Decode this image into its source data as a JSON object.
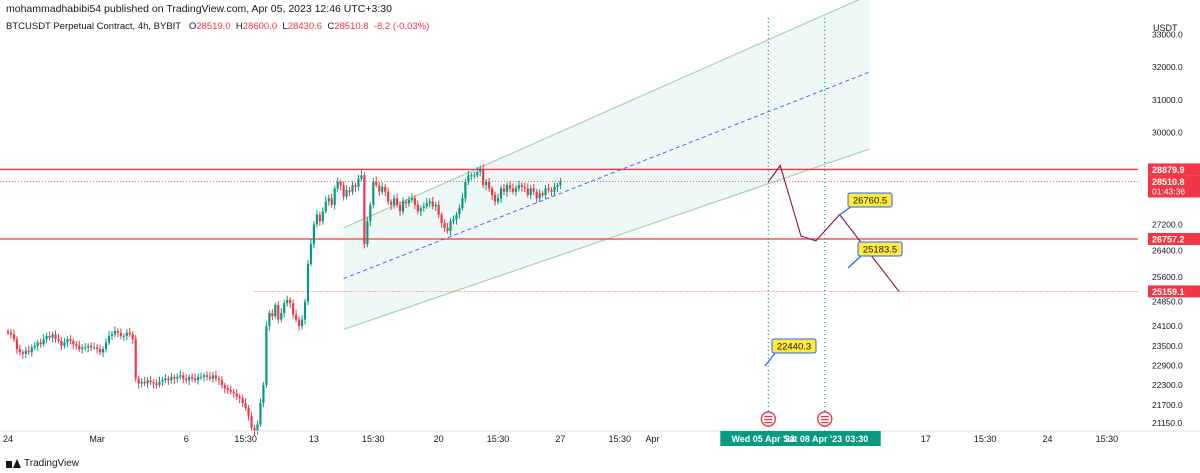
{
  "header": {
    "publisher_text": "mohammadhabibi54 published on TradingView.com, Apr 05, 2023 12:46 UTC+3:30"
  },
  "symbol": {
    "name": "BTCUSDT Perpetual Contract, 4h, BYBIT",
    "open_label": "O",
    "open": "28519.0",
    "high_label": "H",
    "high": "28600.0",
    "low_label": "L",
    "low": "28430.6",
    "close_label": "C",
    "close": "28510.8",
    "change": "-8.2 (-0.03%)"
  },
  "footer": {
    "brand": "TradingView"
  },
  "colors": {
    "up": "#089981",
    "down": "#f23645",
    "channel": "#a5d6a7",
    "channel_fill": "#e0f2ef",
    "midline": "#2962ff",
    "label_yellow": "#ffeb3b",
    "label_border": "#2962ff",
    "projection": "#880e4f",
    "vline": "#089981"
  },
  "chart_data": {
    "type": "candlestick",
    "instrument": "BTCUSDT Perpetual Contract",
    "timeframe": "4h",
    "exchange": "BYBIT",
    "ylabel": "USDT",
    "ylim": [
      20900,
      33500
    ],
    "x_tick_labels": [
      "24",
      "Mar",
      "6",
      "15:30",
      "13",
      "15:30",
      "20",
      "15:30",
      "27",
      "15:30",
      "Apr",
      "15:30",
      "17",
      "15:30",
      "24",
      "15:30"
    ],
    "x_tick_index": [
      0,
      30,
      60,
      80,
      103,
      123,
      145,
      165,
      186,
      206,
      217,
      290,
      309,
      329,
      350,
      370
    ],
    "y_tick_labels": [
      "33000.0",
      "32000.0",
      "31000.0",
      "30000.0",
      "27200.0",
      "26400.0",
      "25600.0",
      "24850.0",
      "24100.0",
      "23500.0",
      "22900.0",
      "22300.0",
      "21700.0",
      "21150.0"
    ],
    "y_tick_values": [
      33000,
      32000,
      31000,
      30000,
      27200,
      26400,
      25600,
      24850,
      24100,
      23500,
      22900,
      22300,
      21700,
      21150
    ],
    "candles_4h": {
      "start_label": "24",
      "opens": [
        23950,
        23900,
        23850,
        23700,
        23400,
        23300,
        23250,
        23350,
        23300,
        23450,
        23500,
        23600,
        23550,
        23700,
        23800,
        23750,
        23850,
        23700,
        23650,
        23500,
        23600,
        23700,
        23650,
        23550,
        23500,
        23400,
        23450,
        23450,
        23500,
        23450,
        23450,
        23400,
        23300,
        23400,
        23600,
        23800,
        23850,
        23950,
        23900,
        23800,
        23800,
        23900,
        23850,
        23700,
        22500,
        22350,
        22400,
        22350,
        22450,
        22400,
        22350,
        22300,
        22400,
        22450,
        22500,
        22450,
        22550,
        22500,
        22550,
        22600,
        22500,
        22450,
        22550,
        22500,
        22450,
        22550,
        22550,
        22600,
        22550,
        22500,
        22600,
        22500,
        22450,
        22300,
        22200,
        22150,
        22100,
        22050,
        21950,
        21900,
        21750,
        21600,
        21350,
        21000,
        20900,
        21100,
        21750,
        22300,
        24100,
        24500,
        24400,
        24750,
        24300,
        24500,
        24800,
        24900,
        24800,
        24450,
        24300,
        24100,
        24300,
        24850,
        26000,
        26600,
        27200,
        27500,
        27300,
        27600,
        27900,
        28000,
        27800,
        28300,
        28500,
        28400,
        28050,
        28250,
        28200,
        28400,
        28350,
        28600,
        28700,
        26600,
        27300,
        27800,
        28500,
        28400,
        28200,
        28350,
        28200,
        27900,
        27800,
        28000,
        27800,
        27600,
        27900,
        27850,
        27950,
        28000,
        27800,
        27600,
        27700,
        27750,
        27850,
        27900,
        27750,
        27800,
        27500,
        27250,
        27100,
        27000,
        27300,
        27350,
        27500,
        27700,
        28000,
        28500,
        28700,
        28700,
        28700,
        28800,
        28900,
        28400,
        28500,
        28300,
        28100,
        27900,
        28000,
        28300,
        28200,
        28400,
        28300,
        28200,
        28300,
        28400,
        28350,
        28300,
        28100,
        28300,
        28200,
        28000,
        28150,
        28100,
        28300,
        28250,
        28200,
        28350,
        28400
      ],
      "closes": [
        23900,
        23850,
        23700,
        23400,
        23300,
        23250,
        23350,
        23300,
        23450,
        23500,
        23600,
        23550,
        23700,
        23800,
        23750,
        23850,
        23700,
        23650,
        23500,
        23600,
        23700,
        23650,
        23550,
        23500,
        23400,
        23450,
        23450,
        23500,
        23450,
        23450,
        23400,
        23300,
        23400,
        23600,
        23800,
        23850,
        23950,
        23900,
        23800,
        23800,
        23900,
        23850,
        23700,
        22500,
        22350,
        22400,
        22350,
        22450,
        22400,
        22350,
        22300,
        22400,
        22450,
        22500,
        22450,
        22550,
        22500,
        22550,
        22600,
        22500,
        22450,
        22550,
        22500,
        22450,
        22550,
        22550,
        22600,
        22550,
        22500,
        22600,
        22500,
        22450,
        22300,
        22200,
        22150,
        22100,
        22050,
        21950,
        21900,
        21750,
        21600,
        21350,
        21000,
        20900,
        21100,
        21750,
        22300,
        24100,
        24500,
        24400,
        24750,
        24300,
        24500,
        24800,
        24900,
        24800,
        24450,
        24300,
        24100,
        24300,
        24850,
        26000,
        26600,
        27200,
        27500,
        27300,
        27600,
        27900,
        28000,
        27800,
        28300,
        28500,
        28400,
        28050,
        28250,
        28200,
        28400,
        28350,
        28600,
        28700,
        26600,
        27300,
        27800,
        28500,
        28400,
        28200,
        28350,
        28200,
        27900,
        27800,
        28000,
        27800,
        27600,
        27900,
        27850,
        27950,
        28000,
        27800,
        27600,
        27700,
        27750,
        27850,
        27900,
        27750,
        27800,
        27500,
        27250,
        27100,
        27000,
        27300,
        27350,
        27500,
        27700,
        28000,
        28500,
        28700,
        28700,
        28700,
        28800,
        28900,
        28400,
        28500,
        28300,
        28100,
        27900,
        28000,
        28300,
        28200,
        28400,
        28300,
        28200,
        28300,
        28400,
        28350,
        28300,
        28100,
        28300,
        28200,
        28000,
        28150,
        28100,
        28300,
        28250,
        28200,
        28350,
        28400,
        28510.8
      ]
    },
    "channel": {
      "start_index": 113,
      "end_index": 290,
      "lower_start": 24000,
      "lower_end": 29500,
      "upper_start": 27100,
      "upper_end": 34200
    },
    "horizontal_levels": [
      {
        "value": 28879.9,
        "label": "28879.9",
        "style": "solid"
      },
      {
        "value": 26757.2,
        "label": "26757.2",
        "style": "solid"
      },
      {
        "value": 25159.1,
        "label": "25159.1",
        "style": "dotted"
      }
    ],
    "price_label": {
      "value": 28510.8,
      "label": "28510.8",
      "timer": "01:43:36"
    },
    "projection_path": [
      {
        "index": 256,
        "value": 28500
      },
      {
        "index": 260,
        "value": 29000
      },
      {
        "index": 267,
        "value": 26850
      },
      {
        "index": 272,
        "value": 26700
      },
      {
        "index": 280,
        "value": 27500
      },
      {
        "index": 300,
        "value": 25159
      }
    ],
    "target_labels": [
      "26760.5",
      "25183.5",
      "22440.3"
    ],
    "target_values": [
      26760.5,
      25183.5,
      22440.3
    ],
    "vertical_markers": [
      {
        "index": 256,
        "date_label": "Wed 05 Apr '23"
      },
      {
        "index": 275,
        "date_label": "Sat 08 Apr '23"
      }
    ],
    "time_label_extra": "03:30"
  }
}
